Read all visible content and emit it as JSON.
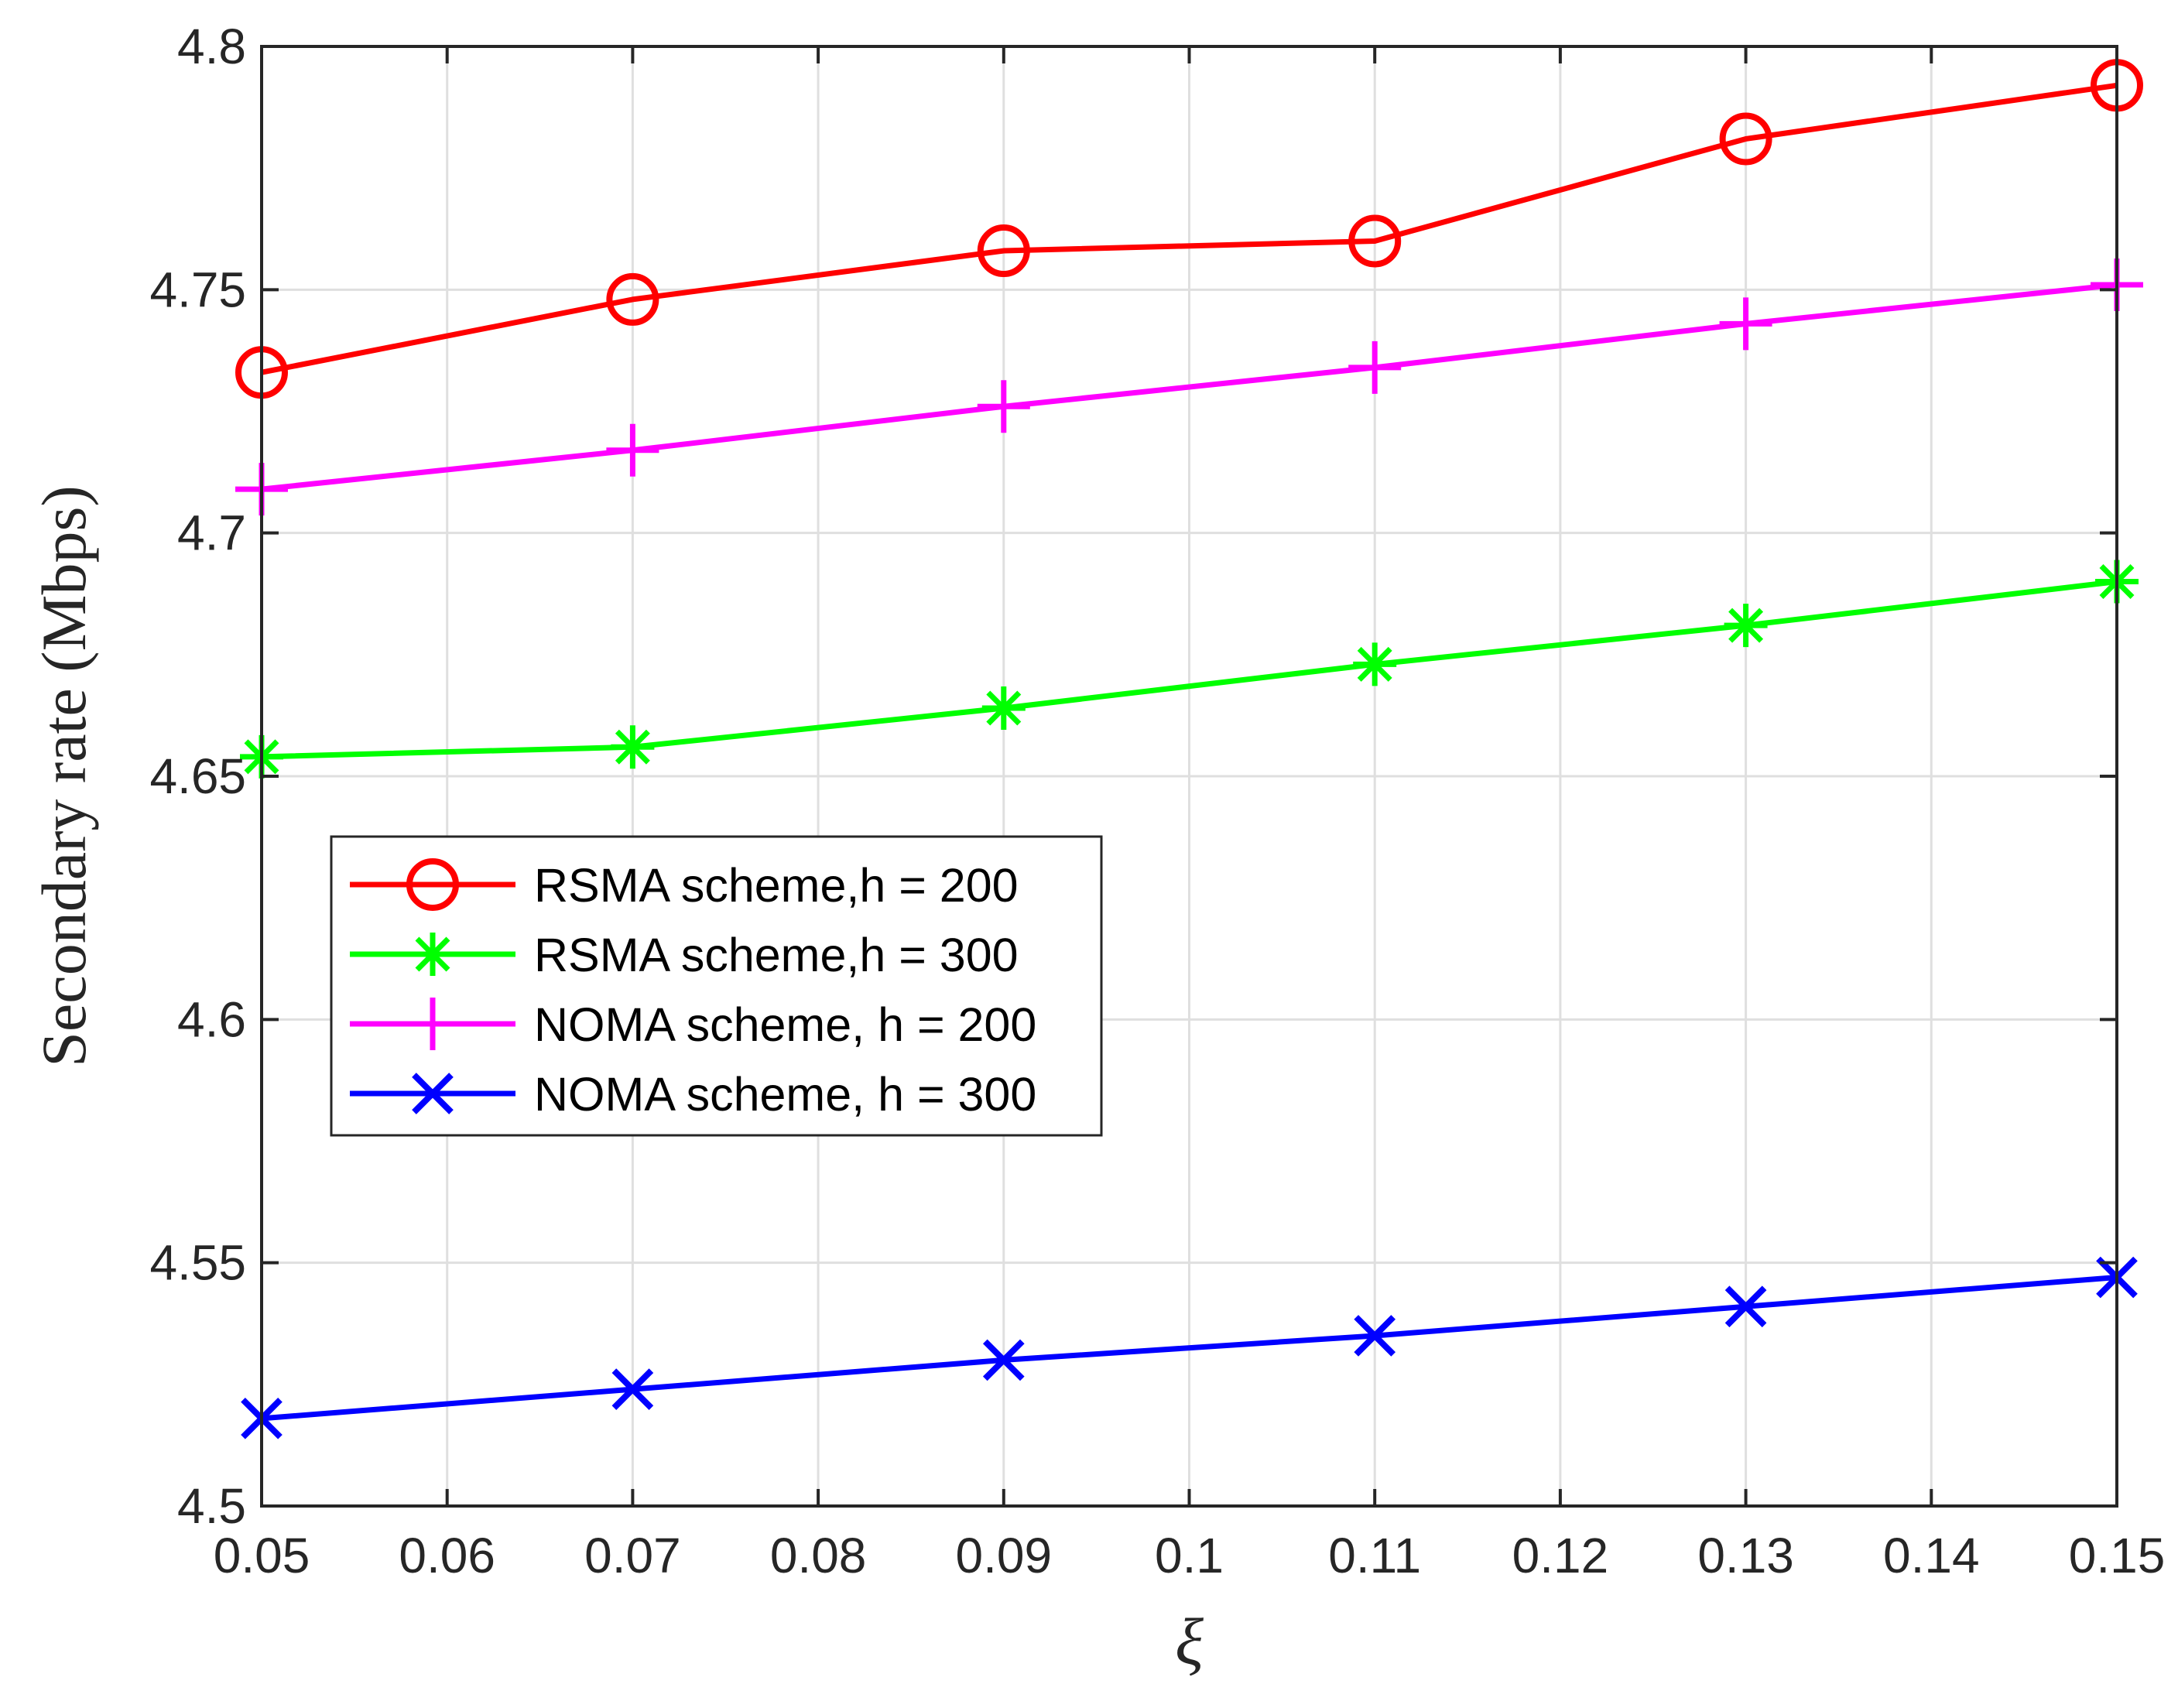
{
  "chart_data": {
    "type": "line",
    "title": "",
    "xlabel": "ξ",
    "ylabel": "Secondary rate (Mbps)",
    "xlim": [
      0.05,
      0.15
    ],
    "ylim": [
      4.5,
      4.8
    ],
    "grid": true,
    "legend_position": "middle-left",
    "x_ticks": [
      "0.05",
      "0.06",
      "0.07",
      "0.08",
      "0.09",
      "0.1",
      "0.11",
      "0.12",
      "0.13",
      "0.14",
      "0.15"
    ],
    "y_ticks": [
      "4.5",
      "4.55",
      "4.6",
      "4.65",
      "4.7",
      "4.75",
      "4.8"
    ],
    "x": [
      0.05,
      0.07,
      0.09,
      0.11,
      0.13,
      0.15
    ],
    "series": [
      {
        "name": "RSMA scheme,h = 200",
        "color": "#ff0000",
        "marker": "circle",
        "values": [
          4.733,
          4.748,
          4.758,
          4.76,
          4.781,
          4.792
        ]
      },
      {
        "name": "RSMA scheme,h = 300",
        "color": "#00ff00",
        "marker": "asterisk",
        "values": [
          4.654,
          4.656,
          4.664,
          4.673,
          4.681,
          4.69
        ]
      },
      {
        "name": "NOMA scheme, h = 200",
        "color": "#ff00ff",
        "marker": "plus",
        "values": [
          4.709,
          4.717,
          4.726,
          4.734,
          4.743,
          4.751
        ]
      },
      {
        "name": "NOMA scheme, h = 300",
        "color": "#0000ff",
        "marker": "cross",
        "values": [
          4.518,
          4.524,
          4.53,
          4.535,
          4.541,
          4.547
        ]
      }
    ]
  }
}
